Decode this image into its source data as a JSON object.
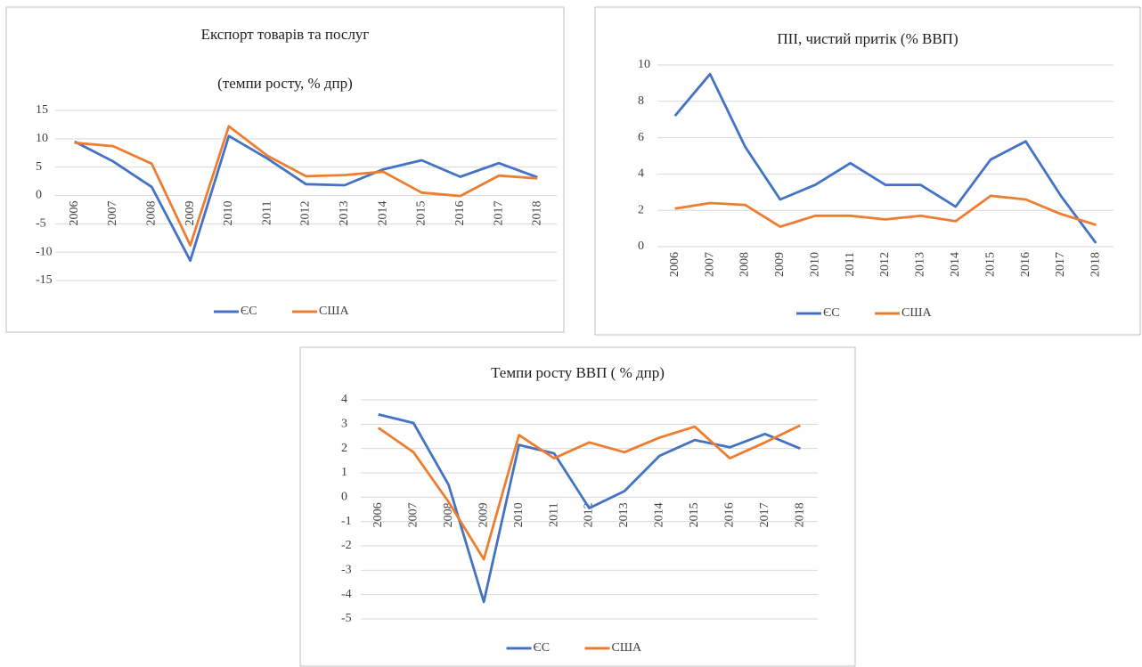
{
  "chart_data": [
    {
      "type": "line",
      "title": "Експорт товарів та послуг",
      "subtitle": "(темпи росту, % дпр)",
      "categories": [
        "2006",
        "2007",
        "2008",
        "2009",
        "2010",
        "2011",
        "2012",
        "2013",
        "2014",
        "2015",
        "2016",
        "2017",
        "2018"
      ],
      "series": [
        {
          "name": "ЄС",
          "color": "#4472c4",
          "values": [
            9.5,
            6,
            1.5,
            -11.5,
            10.5,
            6.5,
            2,
            1.8,
            4.6,
            6.2,
            3.3,
            5.7,
            3.2
          ]
        },
        {
          "name": "США",
          "color": "#ed7d31",
          "values": [
            9.3,
            8.7,
            5.6,
            -8.8,
            12.2,
            7,
            3.4,
            3.6,
            4.2,
            0.5,
            -0.1,
            3.5,
            3
          ]
        }
      ],
      "ylim": [
        -15,
        15
      ],
      "yticks": [
        15,
        10,
        5,
        0,
        -5,
        -10,
        -15
      ],
      "grid": true,
      "legend": "bottom"
    },
    {
      "type": "line",
      "title": "ПІІ, чистий притік (% ВВП)",
      "categories": [
        "2006",
        "2007",
        "2008",
        "2009",
        "2010",
        "2011",
        "2012",
        "2013",
        "2014",
        "2015",
        "2016",
        "2017",
        "2018"
      ],
      "series": [
        {
          "name": "ЄС",
          "color": "#4472c4",
          "values": [
            7.2,
            9.5,
            5.5,
            2.6,
            3.4,
            4.6,
            3.4,
            3.4,
            2.2,
            4.8,
            5.8,
            2.8,
            0.2
          ]
        },
        {
          "name": "США",
          "color": "#ed7d31",
          "values": [
            2.1,
            2.4,
            2.3,
            1.1,
            1.7,
            1.7,
            1.5,
            1.7,
            1.4,
            2.8,
            2.6,
            1.8,
            1.2
          ]
        }
      ],
      "ylim": [
        0,
        10
      ],
      "yticks": [
        10,
        8,
        6,
        4,
        2,
        0
      ],
      "grid": true,
      "legend": "bottom"
    },
    {
      "type": "line",
      "title": "Темпи росту ВВП ( % дпр)",
      "categories": [
        "2006",
        "2007",
        "2008",
        "2009",
        "2010",
        "2011",
        "2012",
        "2013",
        "2014",
        "2015",
        "2016",
        "2017",
        "2018"
      ],
      "series": [
        {
          "name": "ЄС",
          "color": "#4472c4",
          "values": [
            3.4,
            3.05,
            0.5,
            -4.3,
            2.15,
            1.8,
            -0.45,
            0.25,
            1.7,
            2.35,
            2.05,
            2.6,
            2.0
          ]
        },
        {
          "name": "США",
          "color": "#ed7d31",
          "values": [
            2.85,
            1.85,
            -0.2,
            -2.55,
            2.55,
            1.6,
            2.25,
            1.85,
            2.45,
            2.9,
            1.6,
            2.25,
            2.95
          ]
        }
      ],
      "ylim": [
        -5,
        4
      ],
      "yticks": [
        4,
        3,
        2,
        1,
        0,
        -1,
        -2,
        -3,
        -4,
        -5
      ],
      "grid": true,
      "legend": "bottom"
    }
  ]
}
